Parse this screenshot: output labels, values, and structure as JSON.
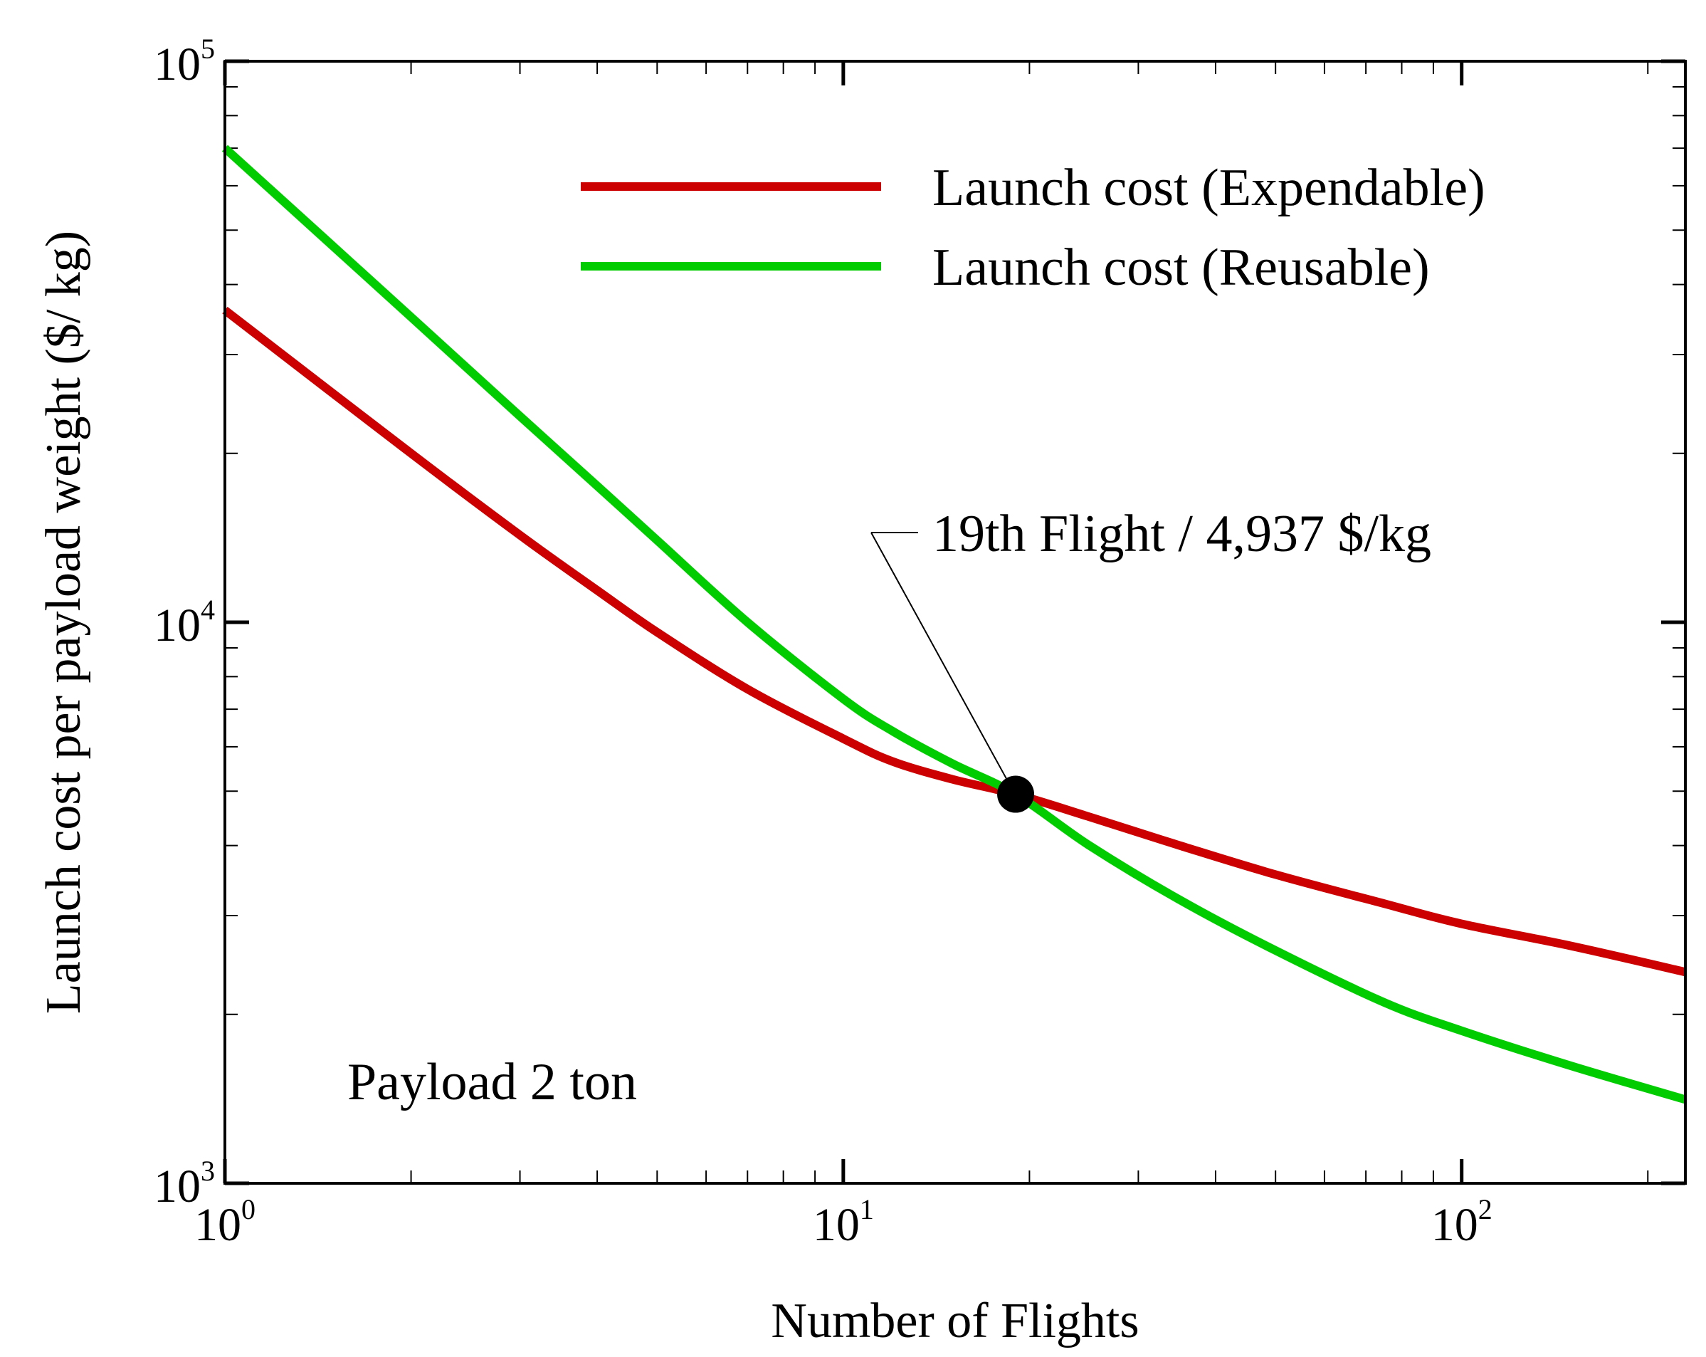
{
  "chart_data": {
    "type": "line",
    "xscale": "log",
    "yscale": "log",
    "xlim": [
      1,
      230
    ],
    "ylim": [
      1000,
      100000
    ],
    "xlabel": "Number of Flights",
    "ylabel": "Launch cost per payload weight ($/ kg)",
    "x_ticks": [
      {
        "base": "10",
        "exp": "0",
        "value": 1
      },
      {
        "base": "10",
        "exp": "1",
        "value": 10
      },
      {
        "base": "10",
        "exp": "2",
        "value": 100
      }
    ],
    "y_ticks": [
      {
        "base": "10",
        "exp": "3",
        "value": 1000
      },
      {
        "base": "10",
        "exp": "4",
        "value": 10000
      },
      {
        "base": "10",
        "exp": "5",
        "value": 100000
      }
    ],
    "series": [
      {
        "name": "Launch cost (Expendable)",
        "color": "#cc0000",
        "x": [
          1,
          2,
          3,
          4,
          5,
          7,
          10,
          12,
          15,
          19,
          25,
          35,
          50,
          75,
          100,
          150,
          230
        ],
        "y": [
          36000,
          20000,
          14300,
          11400,
          9600,
          7600,
          6200,
          5650,
          5250,
          4937,
          4500,
          4000,
          3550,
          3150,
          2900,
          2650,
          2380
        ]
      },
      {
        "name": "Launch cost (Reusable)",
        "color": "#00cc00",
        "x": [
          1,
          2,
          3,
          4,
          5,
          7,
          10,
          12,
          15,
          19,
          25,
          35,
          50,
          75,
          100,
          150,
          230
        ],
        "y": [
          70000,
          35000,
          23300,
          17500,
          14000,
          10000,
          7300,
          6400,
          5600,
          4937,
          4000,
          3200,
          2600,
          2100,
          1870,
          1620,
          1410
        ]
      }
    ],
    "annotation": {
      "label": "19th Flight / 4,937 $/kg",
      "x": 19,
      "y": 4937
    },
    "note": "Payload 2 ton",
    "legend_position": "top-right",
    "grid": false
  }
}
